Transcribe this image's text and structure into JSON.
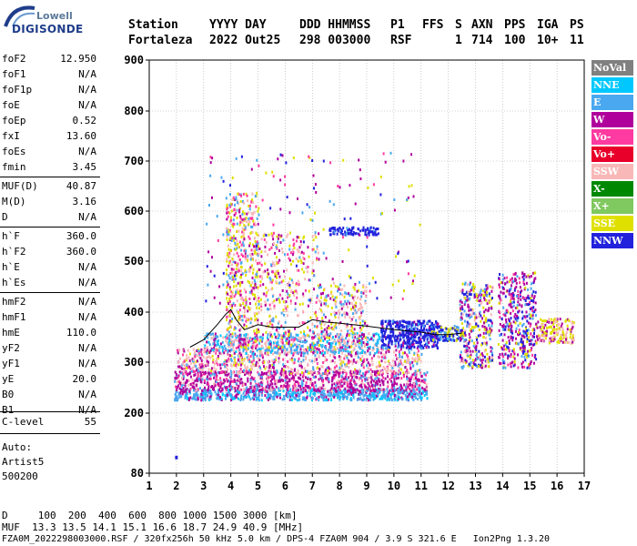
{
  "logo": {
    "line1": "Lowell",
    "line2": "DIGISONDE"
  },
  "header": {
    "labels": [
      "Station",
      "YYYY DAY",
      "DDD HHMMSS",
      "P1",
      "FFS",
      "S",
      "AXN",
      "PPS",
      "IGA",
      "PS"
    ],
    "values": [
      "Fortaleza",
      "2022 Out25",
      "298 003000",
      "RSF",
      "",
      "1",
      "714",
      "100",
      "10+",
      "11"
    ]
  },
  "params_group1": [
    {
      "label": "foF2",
      "value": "12.950"
    },
    {
      "label": "foF1",
      "value": "N/A"
    },
    {
      "label": "foF1p",
      "value": "N/A"
    },
    {
      "label": "foE",
      "value": "N/A"
    },
    {
      "label": "foEp",
      "value": "0.52"
    },
    {
      "label": "fxI",
      "value": "13.60"
    },
    {
      "label": "foEs",
      "value": "N/A"
    },
    {
      "label": "fmin",
      "value": "3.45"
    }
  ],
  "params_group2": [
    {
      "label": "MUF(D)",
      "value": "40.87"
    },
    {
      "label": "M(D)",
      "value": "3.16"
    },
    {
      "label": "D",
      "value": "N/A"
    }
  ],
  "params_group3": [
    {
      "label": "h`F",
      "value": "360.0"
    },
    {
      "label": "h`F2",
      "value": "360.0"
    },
    {
      "label": "h`E",
      "value": "N/A"
    },
    {
      "label": "h`Es",
      "value": "N/A"
    }
  ],
  "params_group4": [
    {
      "label": "hmF2",
      "value": "N/A"
    },
    {
      "label": "hmF1",
      "value": "N/A"
    },
    {
      "label": "hmE",
      "value": "110.0"
    },
    {
      "label": "yF2",
      "value": "N/A"
    },
    {
      "label": "yF1",
      "value": "N/A"
    },
    {
      "label": "yE",
      "value": "20.0"
    },
    {
      "label": "B0",
      "value": "N/A"
    },
    {
      "label": "B1",
      "value": "N/A"
    }
  ],
  "params_group5": [
    {
      "label": "C-level",
      "value": "55"
    }
  ],
  "autoscaling": [
    "Auto:",
    "Artist5",
    "500200"
  ],
  "legend": [
    {
      "label": "NoVal",
      "color": "#808080"
    },
    {
      "label": "NNE",
      "color": "#00c8ff"
    },
    {
      "label": "E",
      "color": "#4aa8f0"
    },
    {
      "label": "W",
      "color": "#b0009c"
    },
    {
      "label": "Vo-",
      "color": "#ff3aa0"
    },
    {
      "label": "Vo+",
      "color": "#e8002a"
    },
    {
      "label": "SSW",
      "color": "#f8b8b8"
    },
    {
      "label": "X-",
      "color": "#008800"
    },
    {
      "label": "X+",
      "color": "#80c860"
    },
    {
      "label": "SSE",
      "color": "#e0e000"
    },
    {
      "label": "NNW",
      "color": "#2222dd"
    }
  ],
  "chart_data": {
    "type": "scatter",
    "x_ticks": [
      "1",
      "2",
      "3",
      "4",
      "5",
      "6",
      "7",
      "8",
      "9",
      "10",
      "11",
      "12",
      "13",
      "14",
      "15",
      "16",
      "17"
    ],
    "y_ticks": [
      "80",
      "200",
      "300",
      "400",
      "500",
      "600",
      "700",
      "800",
      "900"
    ],
    "xlim": [
      1,
      17
    ],
    "y_axis": "non-linear height scale",
    "grid": true,
    "trace": {
      "x": [
        2.5,
        3.0,
        3.5,
        3.8,
        4.0,
        4.2,
        4.5,
        5.0,
        5.5,
        6.0,
        6.5,
        7.0,
        7.5,
        8.0,
        9.0,
        10.0,
        11.0,
        11.5,
        12.0,
        12.5
      ],
      "y": [
        330,
        345,
        375,
        395,
        405,
        385,
        365,
        375,
        370,
        370,
        370,
        385,
        380,
        378,
        372,
        365,
        360,
        355,
        355,
        358
      ]
    }
  },
  "footer": {
    "line1": "D     100  200  400  600  800 1000 1500 3000 [km]",
    "line2": "MUF  13.3 13.5 14.1 15.1 16.6 18.7 24.9 40.9 [MHz]",
    "line3": "FZA0M_2022298003000.RSF / 320fx256h 50 kHz 5.0 km / DPS-4 FZA0M 904 / 3.9 S 321.6 E   Ion2Png 1.3.20"
  }
}
